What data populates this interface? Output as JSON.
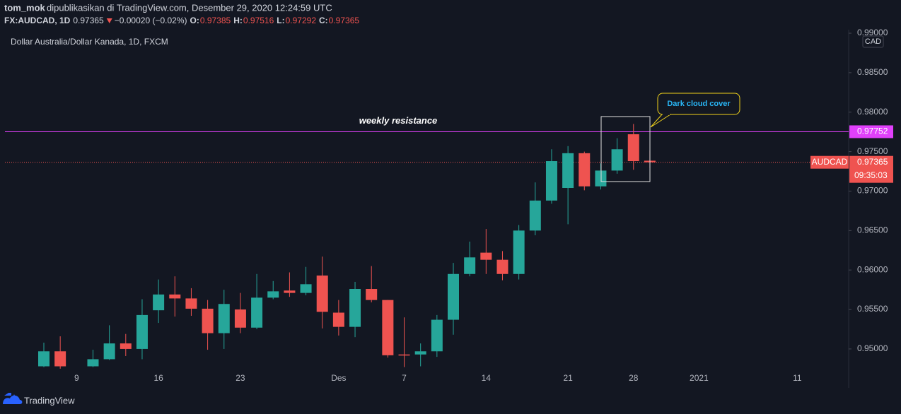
{
  "header": {
    "user": "tom_mok",
    "published": "dipublikasikan di TradingView.com, Desember 29, 2020 12:24:59 UTC",
    "symbol": "FX:AUDCAD, 1D",
    "change": "−0.00020 (−0.02%)",
    "ohlc_labels": [
      "O:",
      "H:",
      "L:",
      "C:"
    ]
  },
  "footer": {
    "brand": "TradingView"
  },
  "chart_data": {
    "type": "candlestick",
    "title": "Dollar Australia/Dollar Kanada, 1D, FXCM",
    "currency": "CAD",
    "categories": [
      null,
      null,
      "9",
      null,
      null,
      null,
      null,
      "16",
      null,
      null,
      null,
      null,
      "23",
      null,
      null,
      null,
      null,
      null,
      "Des",
      null,
      null,
      null,
      "7",
      null,
      null,
      null,
      null,
      "14",
      null,
      null,
      null,
      null,
      "21",
      null,
      null,
      null,
      "28",
      null,
      null,
      null,
      "2021",
      null,
      null,
      null,
      null,
      null,
      "11"
    ],
    "open": [
      0.9478,
      0.9497,
      null,
      0.9478,
      0.9487,
      0.9507,
      0.95,
      0.9549,
      0.9569,
      0.9564,
      0.9551,
      0.952,
      0.955,
      0.9527,
      0.9565,
      0.9574,
      0.9571,
      0.9593,
      0.9546,
      0.9528,
      0.9576,
      0.9562,
      0.9493,
      0.9493,
      0.9497,
      0.9537,
      0.9595,
      0.9622,
      0.9613,
      0.9595,
      0.965,
      0.9688,
      0.9704,
      0.9748,
      0.9706,
      0.9726,
      0.9772,
      0.97385,
      null,
      null,
      null,
      null,
      null,
      null,
      null,
      null,
      null
    ],
    "high": [
      0.9508,
      0.9516,
      null,
      0.9499,
      0.953,
      0.9519,
      0.9563,
      0.9588,
      0.9592,
      0.9577,
      0.9562,
      0.9575,
      0.9571,
      0.9595,
      0.9586,
      0.9597,
      0.9604,
      0.9617,
      0.9562,
      0.9585,
      0.9605,
      0.9562,
      0.954,
      0.9507,
      0.9543,
      0.9609,
      0.9636,
      0.9652,
      0.9624,
      0.9657,
      0.9711,
      0.9753,
      0.9757,
      0.975,
      0.9735,
      0.9767,
      0.9785,
      0.97516,
      null,
      null,
      null,
      null,
      null,
      null,
      null,
      null,
      null
    ],
    "low": [
      0.9477,
      0.9475,
      null,
      0.9477,
      0.9486,
      0.9491,
      0.9487,
      0.9533,
      0.9541,
      0.9542,
      0.9499,
      0.95,
      0.952,
      0.9525,
      0.9563,
      0.9566,
      0.9568,
      0.9526,
      0.9517,
      0.9515,
      0.9559,
      0.9489,
      0.9477,
      0.9478,
      0.949,
      0.9518,
      0.9592,
      0.9595,
      0.9587,
      0.9588,
      0.9644,
      0.9684,
      0.9658,
      0.9701,
      0.9702,
      0.9722,
      0.9727,
      0.97292,
      null,
      null,
      null,
      null,
      null,
      null,
      null,
      null,
      null
    ],
    "close": [
      0.9497,
      0.9478,
      null,
      0.9487,
      0.9507,
      0.95,
      0.9543,
      0.9569,
      0.9564,
      0.9551,
      0.952,
      0.9557,
      0.9527,
      0.9565,
      0.9573,
      0.9571,
      0.9582,
      0.9547,
      0.9528,
      0.9576,
      0.9562,
      0.9492,
      0.9492,
      0.9497,
      0.9537,
      0.9595,
      0.9616,
      0.9613,
      0.9595,
      0.965,
      0.9688,
      0.9738,
      0.9748,
      0.9706,
      0.9726,
      0.9753,
      0.9738,
      0.97365,
      null,
      null,
      null,
      null,
      null,
      null,
      null,
      null,
      null
    ],
    "up_color": "#26a69a",
    "down_color": "#ef5350",
    "ylim": [
      0.94507,
      0.99045
    ],
    "yticks": [
      {
        "value": 0.95,
        "label": "0.95000"
      },
      {
        "value": 0.955,
        "label": "0.95500"
      },
      {
        "value": 0.96,
        "label": "0.96000"
      },
      {
        "value": 0.965,
        "label": "0.96500"
      },
      {
        "value": 0.97,
        "label": "0.97000"
      },
      {
        "value": 0.975,
        "label": "0.97500"
      },
      {
        "value": 0.98,
        "label": "0.98000"
      },
      {
        "value": 0.985,
        "label": "0.98500"
      },
      {
        "value": 0.99,
        "label": "0.99000"
      }
    ],
    "grid": false,
    "lines": [
      {
        "name": "weekly resistance",
        "value": 0.97752,
        "label": "0.97752",
        "color": "#e040fb"
      },
      {
        "name": "AUDCAD",
        "value": 0.97365,
        "label": "0.97365",
        "countdown": "09:35:03",
        "color": "#ef5350"
      }
    ],
    "annotation": "Dark cloud cover"
  }
}
